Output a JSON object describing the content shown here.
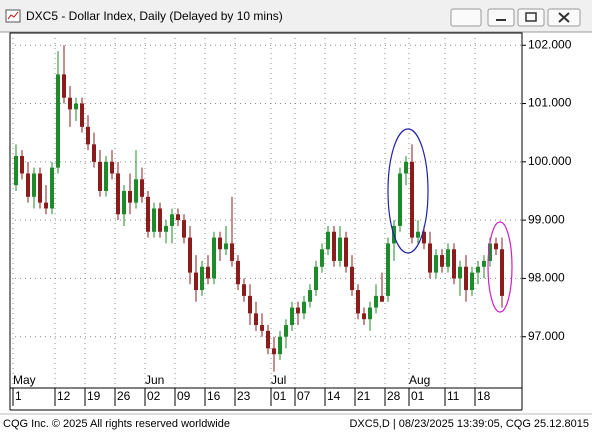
{
  "chart_data": {
    "type": "candlestick",
    "title": "DXC5 - Dollar Index, Daily (Delayed by 10 mins)",
    "categories": [
      "1",
      null,
      null,
      null,
      null,
      null,
      null,
      "12",
      null,
      null,
      null,
      null,
      "19",
      null,
      null,
      null,
      null,
      "26",
      null,
      null,
      null,
      null,
      "02",
      null,
      null,
      null,
      null,
      "09",
      null,
      null,
      null,
      null,
      "16",
      null,
      null,
      null,
      null,
      "23",
      null,
      null,
      null,
      null,
      null,
      "01",
      null,
      null,
      null,
      "07",
      null,
      null,
      null,
      null,
      "14",
      null,
      null,
      null,
      null,
      "21",
      null,
      null,
      null,
      null,
      "28",
      null,
      null,
      null,
      "01",
      null,
      null,
      null,
      null,
      null,
      "11",
      null,
      null,
      null,
      null,
      "18",
      null,
      null,
      null,
      null
    ],
    "month_labels": [
      {
        "value": 0,
        "label": "May"
      },
      {
        "value": 22,
        "label": "Jun"
      },
      {
        "value": 43,
        "label": "Jul"
      },
      {
        "value": 66,
        "label": "Aug"
      }
    ],
    "open": [
      99.6,
      100.1,
      99.8,
      99.4,
      99.8,
      99.3,
      99.2,
      99.9,
      101.5,
      101.1,
      100.9,
      101.0,
      100.6,
      100.3,
      100.0,
      99.5,
      100.0,
      99.8,
      99.1,
      99.5,
      99.3,
      99.7,
      99.4,
      98.8,
      99.2,
      98.8,
      98.9,
      99.1,
      99.0,
      98.7,
      98.1,
      97.8,
      98.2,
      98.0,
      98.7,
      98.5,
      98.6,
      98.3,
      97.9,
      97.7,
      97.4,
      97.2,
      97.1,
      96.8,
      96.7,
      97.0,
      97.2,
      97.5,
      97.4,
      97.6,
      97.8,
      98.2,
      98.5,
      98.8,
      98.3,
      98.7,
      98.2,
      97.8,
      97.4,
      97.3,
      97.5,
      97.7,
      97.7,
      98.6,
      98.9,
      99.8,
      100.0,
      98.7,
      98.8,
      98.6,
      98.1,
      98.4,
      98.2,
      98.5,
      98.0,
      98.2,
      97.8,
      98.1,
      98.2,
      98.3,
      98.6,
      98.5
    ],
    "high": [
      100.3,
      100.2,
      100.0,
      99.9,
      99.9,
      99.6,
      100.0,
      101.9,
      102.0,
      101.3,
      101.1,
      101.1,
      100.8,
      100.5,
      100.2,
      100.1,
      100.2,
      100.0,
      99.6,
      99.8,
      100.2,
      99.9,
      99.5,
      99.3,
      99.3,
      99.0,
      99.2,
      99.2,
      99.1,
      98.9,
      98.4,
      98.3,
      98.4,
      98.8,
      98.8,
      98.9,
      99.4,
      98.4,
      98.0,
      97.9,
      97.6,
      97.4,
      97.2,
      97.0,
      97.1,
      97.3,
      97.6,
      97.6,
      97.7,
      97.9,
      98.3,
      98.6,
      98.9,
      98.9,
      98.9,
      98.8,
      98.4,
      97.9,
      97.5,
      97.6,
      97.9,
      98.1,
      98.7,
      99.0,
      99.9,
      100.1,
      100.3,
      99.0,
      98.9,
      98.8,
      98.5,
      98.5,
      98.6,
      98.6,
      98.3,
      98.4,
      98.2,
      98.3,
      98.4,
      98.7,
      98.7,
      98.7
    ],
    "low": [
      99.5,
      99.7,
      99.3,
      99.2,
      99.2,
      99.1,
      99.1,
      99.8,
      101.0,
      100.6,
      100.7,
      100.5,
      100.2,
      99.9,
      99.4,
      99.4,
      99.7,
      99.0,
      98.9,
      99.1,
      99.2,
      99.3,
      98.7,
      98.7,
      98.7,
      98.6,
      98.6,
      98.9,
      98.6,
      97.9,
      97.6,
      97.7,
      97.9,
      97.9,
      98.3,
      98.4,
      98.2,
      97.8,
      97.6,
      97.2,
      97.1,
      97.0,
      96.7,
      96.4,
      96.6,
      96.8,
      97.1,
      97.2,
      97.3,
      97.5,
      97.7,
      98.1,
      98.4,
      98.2,
      98.2,
      98.1,
      97.7,
      97.3,
      97.2,
      97.1,
      97.4,
      97.6,
      97.6,
      98.3,
      98.8,
      99.6,
      98.6,
      98.6,
      98.5,
      98.0,
      98.0,
      98.1,
      98.1,
      97.9,
      97.7,
      97.6,
      97.7,
      97.9,
      98.0,
      98.2,
      98.4,
      97.5
    ],
    "close": [
      100.1,
      99.8,
      99.4,
      99.8,
      99.3,
      99.2,
      99.9,
      101.5,
      101.1,
      100.9,
      101.0,
      100.6,
      100.3,
      100.0,
      99.5,
      100.0,
      99.8,
      99.1,
      99.5,
      99.3,
      99.7,
      99.4,
      98.8,
      99.2,
      98.8,
      98.9,
      99.1,
      99.0,
      98.7,
      98.1,
      97.8,
      98.2,
      98.0,
      98.7,
      98.5,
      98.6,
      98.3,
      97.9,
      97.7,
      97.4,
      97.2,
      97.1,
      96.8,
      96.7,
      97.0,
      97.2,
      97.5,
      97.4,
      97.6,
      97.8,
      98.2,
      98.5,
      98.8,
      98.3,
      98.7,
      98.2,
      97.8,
      97.4,
      97.3,
      97.5,
      97.7,
      97.6,
      98.6,
      98.9,
      99.8,
      100.0,
      98.7,
      98.8,
      98.6,
      98.1,
      98.4,
      98.2,
      98.5,
      98.0,
      98.2,
      97.8,
      98.1,
      98.2,
      98.3,
      98.6,
      98.5,
      97.7
    ],
    "up_color": "#1f8a2a",
    "down_color": "#8b1c1c",
    "ylim": [
      96.12,
      102.21
    ],
    "yticks": [
      {
        "value": 97,
        "label": "97.000"
      },
      {
        "value": 98,
        "label": "98.000"
      },
      {
        "value": 99,
        "label": "99.000"
      },
      {
        "value": 100,
        "label": "100.000"
      },
      {
        "value": 101,
        "label": "101.000"
      },
      {
        "value": 102,
        "label": "102.000"
      }
    ],
    "grid": true
  },
  "footer": {
    "left": "CQG Inc. © 2025 All rights reserved worldwide",
    "right": "DXC5,D | 08/23/2025 13:39:05, CQG 25.12.8015"
  }
}
